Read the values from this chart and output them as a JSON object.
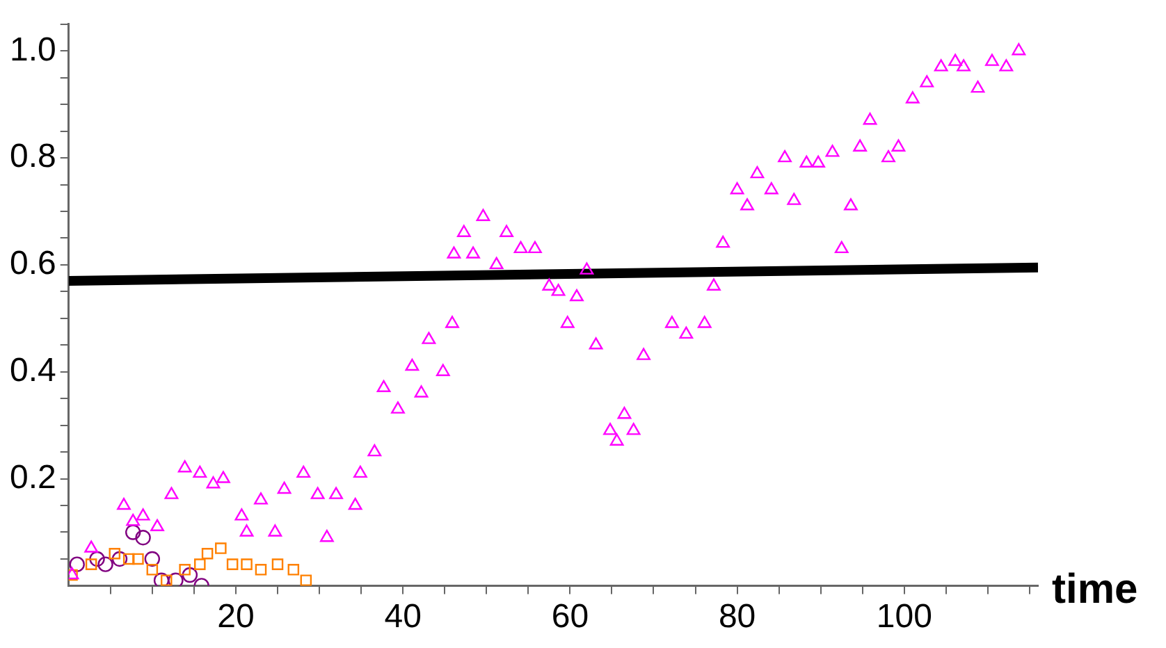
{
  "chart_data": {
    "type": "scatter",
    "xlabel": "time",
    "xlim": [
      0,
      116
    ],
    "ylim": [
      0,
      1.05
    ],
    "xticks": [
      {
        "value": 5,
        "label": null
      },
      {
        "value": 10,
        "label": null
      },
      {
        "value": 15,
        "label": null
      },
      20,
      {
        "value": 25,
        "label": null
      },
      {
        "value": 30,
        "label": null
      },
      {
        "value": 35,
        "label": null
      },
      40,
      {
        "value": 45,
        "label": null
      },
      {
        "value": 50,
        "label": null
      },
      {
        "value": 55,
        "label": null
      },
      60,
      {
        "value": 65,
        "label": null
      },
      {
        "value": 70,
        "label": null
      },
      {
        "value": 75,
        "label": null
      },
      80,
      {
        "value": 85,
        "label": null
      },
      {
        "value": 90,
        "label": null
      },
      {
        "value": 95,
        "label": null
      },
      100,
      {
        "value": 105,
        "label": null
      },
      {
        "value": 110,
        "label": null
      },
      {
        "value": 115,
        "label": null
      }
    ],
    "yticks": [
      {
        "value": 0.05,
        "label": null
      },
      {
        "value": 0.1,
        "label": null
      },
      {
        "value": 0.15,
        "label": null
      },
      0.2,
      {
        "value": 0.25,
        "label": null
      },
      {
        "value": 0.3,
        "label": null
      },
      {
        "value": 0.35,
        "label": null
      },
      0.4,
      {
        "value": 0.45,
        "label": null
      },
      {
        "value": 0.5,
        "label": null
      },
      {
        "value": 0.55,
        "label": null
      },
      0.6,
      {
        "value": 0.65,
        "label": null
      },
      {
        "value": 0.7,
        "label": null
      },
      {
        "value": 0.75,
        "label": null
      },
      0.8,
      {
        "value": 0.85,
        "label": null
      },
      {
        "value": 0.9,
        "label": null
      },
      {
        "value": 0.95,
        "label": null
      },
      {
        "value": 1,
        "label": "1.0"
      },
      {
        "value": 1.05,
        "label": null
      }
    ],
    "series": [
      {
        "color": "#ff00ff",
        "marker": "triangle",
        "x": [
          0.4,
          2.7,
          6.6,
          7.7,
          8.9,
          10.6,
          12.3,
          13.9,
          15.7,
          17.3,
          18.5,
          20.7,
          21.3,
          23.0,
          24.7,
          25.8,
          28.1,
          29.8,
          30.9,
          32.0,
          34.3,
          34.9,
          36.6,
          37.7,
          39.4,
          41.1,
          42.2,
          43.1,
          44.8,
          45.9,
          46.1,
          47.3,
          48.4,
          49.6,
          51.2,
          52.4,
          54.1,
          55.8,
          57.5,
          58.6,
          59.7,
          60.8,
          62.0,
          63.1,
          64.8,
          65.6,
          66.5,
          67.6,
          68.8,
          72.2,
          73.9,
          76.1,
          77.2,
          78.3,
          80.0,
          81.2,
          82.4,
          84.1,
          85.7,
          86.8,
          88.3,
          89.7,
          91.4,
          92.5,
          93.6,
          94.7,
          95.9,
          98.1,
          99.3,
          101.0,
          102.7,
          104.4,
          106.1,
          107.1,
          108.8,
          110.5,
          112.2,
          113.7
        ],
        "values": [
          0.02,
          0.07,
          0.15,
          0.12,
          0.13,
          0.11,
          0.17,
          0.22,
          0.21,
          0.19,
          0.2,
          0.13,
          0.1,
          0.16,
          0.1,
          0.18,
          0.21,
          0.17,
          0.09,
          0.17,
          0.15,
          0.21,
          0.25,
          0.37,
          0.33,
          0.41,
          0.36,
          0.46,
          0.4,
          0.49,
          0.62,
          0.66,
          0.62,
          0.69,
          0.6,
          0.66,
          0.63,
          0.63,
          0.56,
          0.55,
          0.49,
          0.54,
          0.59,
          0.45,
          0.29,
          0.27,
          0.32,
          0.29,
          0.43,
          0.49,
          0.47,
          0.49,
          0.56,
          0.64,
          0.74,
          0.71,
          0.77,
          0.74,
          0.8,
          0.72,
          0.79,
          0.79,
          0.81,
          0.63,
          0.71,
          0.82,
          0.87,
          0.8,
          0.82,
          0.91,
          0.94,
          0.97,
          0.98,
          0.97,
          0.93,
          0.98,
          0.97,
          1.0
        ]
      },
      {
        "color": "#ff8000",
        "marker": "square",
        "x": [
          0.4,
          2.7,
          5.5,
          7.2,
          8.3,
          10.0,
          11.7,
          13.9,
          15.7,
          16.6,
          18.2,
          19.6,
          21.3,
          23.0,
          25.0,
          26.9,
          28.4
        ],
        "values": [
          0.02,
          0.04,
          0.06,
          0.05,
          0.05,
          0.03,
          0.01,
          0.03,
          0.04,
          0.06,
          0.07,
          0.04,
          0.04,
          0.03,
          0.04,
          0.03,
          0.01
        ]
      },
      {
        "color": "#800080",
        "marker": "circle",
        "x": [
          1.0,
          3.4,
          4.4,
          6.1,
          7.7,
          8.9,
          10.0,
          11.1,
          12.8,
          14.5,
          15.9
        ],
        "values": [
          0.04,
          0.05,
          0.04,
          0.05,
          0.1,
          0.09,
          0.05,
          0.01,
          0.01,
          0.02,
          0.0
        ]
      },
      {
        "type": "line",
        "color": "#000000",
        "marker": "none",
        "x": [
          0,
          116
        ],
        "values": [
          0.57,
          0.595
        ]
      }
    ]
  }
}
